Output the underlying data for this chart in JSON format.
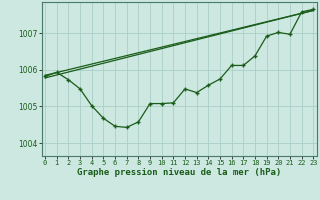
{
  "title": "Graphe pression niveau de la mer (hPa)",
  "bg_color": "#cce8e0",
  "grid_color": "#aad0c8",
  "line_color": "#1a5c1a",
  "marker_color": "#1a5c1a",
  "xlim": [
    -0.3,
    23.3
  ],
  "ylim": [
    1003.65,
    1007.85
  ],
  "yticks": [
    1004,
    1005,
    1006,
    1007
  ],
  "hourly_data": [
    1005.82,
    1005.93,
    1005.73,
    1005.48,
    1005.02,
    1004.68,
    1004.46,
    1004.43,
    1004.58,
    1005.08,
    1005.08,
    1005.1,
    1005.48,
    1005.38,
    1005.58,
    1005.75,
    1006.12,
    1006.12,
    1006.38,
    1006.92,
    1007.02,
    1006.97,
    1007.58,
    1007.65
  ],
  "trend1_x": [
    0,
    23
  ],
  "trend1_y": [
    1005.85,
    1007.62
  ],
  "trend2_x": [
    0,
    23
  ],
  "trend2_y": [
    1005.78,
    1007.62
  ],
  "xlabel_fontsize": 6.5,
  "ytick_fontsize": 5.5,
  "xtick_fontsize": 5.0
}
